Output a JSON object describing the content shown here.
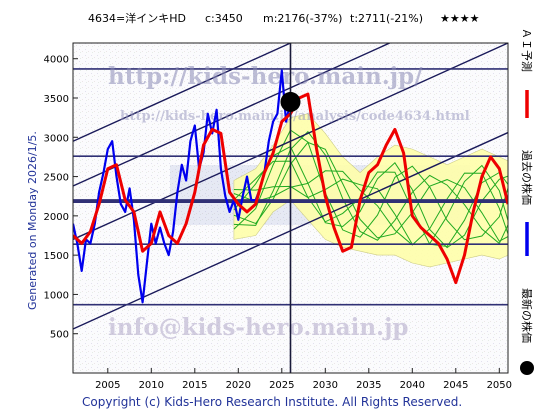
{
  "header": {
    "code_name": "4634=洋インキHD",
    "current": "c:3450",
    "median": "m:2176(-37%)",
    "target": "t:2711(-21%)",
    "stars": "★★★★"
  },
  "side_note": "Generated on Monday 2026/1/5.",
  "copyright": "Copyright (c) Kids-Hero Research Institute. All Rights Reserved.",
  "watermarks": {
    "url_top": "http://kids-hero.main.jp/",
    "url_sub": "http://kids-hero.main.jp/analysis/code4634.html",
    "email": "info@kids-hero.main.jp"
  },
  "legend": {
    "forecast": "ＡＩ予測",
    "past_price": "過去の株価",
    "latest_price": "最新の株価"
  },
  "colors": {
    "forecast": "#ee0000",
    "past": "#0000ee",
    "sim": "#22aa22",
    "band": "#ffffaa",
    "band_green": "#99ee77",
    "trend": "#1a1a5a",
    "hline": "#303075"
  },
  "chart_data": {
    "type": "line",
    "xlim": [
      2001,
      2051
    ],
    "ylim": [
      0,
      4200
    ],
    "x_ticks": [
      2005,
      2010,
      2015,
      2020,
      2025,
      2030,
      2035,
      2040,
      2045,
      2050
    ],
    "y_ticks": [
      500,
      1000,
      1500,
      2000,
      2500,
      3000,
      3500,
      4000
    ],
    "latest_point": {
      "x": 2026.0,
      "y": 3450
    },
    "marker_year": 2026.0,
    "horizontal_levels": [
      3870,
      2760,
      2200,
      2176,
      1640,
      870
    ],
    "trend_lines": [
      {
        "from": [
          2001,
          2950
        ],
        "to": [
          2051,
          5450
        ]
      },
      {
        "from": [
          2001,
          2380
        ],
        "to": [
          2051,
          4880
        ]
      },
      {
        "from": [
          2001,
          1700
        ],
        "to": [
          2051,
          4200
        ]
      },
      {
        "from": [
          2001,
          560
        ],
        "to": [
          2051,
          3060
        ]
      }
    ],
    "past_price": {
      "name": "過去の株価",
      "x": [
        2001.0,
        2001.5,
        2002.0,
        2002.5,
        2003.0,
        2003.5,
        2004.0,
        2004.5,
        2005.0,
        2005.5,
        2006.0,
        2006.5,
        2007.0,
        2007.5,
        2008.0,
        2008.5,
        2009.0,
        2009.5,
        2010.0,
        2010.5,
        2011.0,
        2011.5,
        2012.0,
        2012.5,
        2013.0,
        2013.5,
        2014.0,
        2014.5,
        2015.0,
        2015.5,
        2016.0,
        2016.5,
        2017.0,
        2017.5,
        2018.0,
        2018.5,
        2019.0,
        2019.5,
        2020.0,
        2020.5,
        2021.0,
        2021.5,
        2022.0,
        2022.5,
        2023.0,
        2023.5,
        2024.0,
        2024.5,
        2025.0,
        2025.5,
        2026.0
      ],
      "y": [
        1900,
        1650,
        1300,
        1700,
        1650,
        1900,
        2300,
        2550,
        2850,
        2950,
        2500,
        2150,
        2050,
        2350,
        1950,
        1250,
        900,
        1400,
        1900,
        1650,
        1850,
        1650,
        1500,
        1800,
        2300,
        2650,
        2450,
        2950,
        3150,
        2600,
        2800,
        3300,
        3050,
        3350,
        2600,
        2250,
        2050,
        2200,
        1950,
        2250,
        2500,
        2200,
        2200,
        2350,
        2550,
        2950,
        3200,
        3300,
        3850,
        3200,
        3450
      ]
    },
    "forecast": {
      "name": "ＡＩ予測",
      "x": [
        2001.0,
        2002.0,
        2003.0,
        2004.0,
        2005.0,
        2006.0,
        2007.0,
        2008.0,
        2009.0,
        2010.0,
        2011.0,
        2012.0,
        2013.0,
        2014.0,
        2015.0,
        2016.0,
        2017.0,
        2018.0,
        2019.0,
        2020.0,
        2021.0,
        2022.0,
        2023.0,
        2024.0,
        2025.0,
        2026.0,
        2027.0,
        2028.0,
        2029.0,
        2030.0,
        2031.0,
        2032.0,
        2033.0,
        2034.0,
        2035.0,
        2036.0,
        2037.0,
        2038.0,
        2039.0,
        2040.0,
        2041.0,
        2042.0,
        2043.0,
        2044.0,
        2045.0,
        2046.0,
        2047.0,
        2048.0,
        2049.0,
        2050.0,
        2051.0
      ],
      "y": [
        1750,
        1650,
        1800,
        2150,
        2600,
        2650,
        2200,
        2050,
        1550,
        1650,
        2050,
        1750,
        1650,
        1900,
        2300,
        2900,
        3100,
        3050,
        2300,
        2150,
        2050,
        2150,
        2550,
        2800,
        3200,
        3300,
        3500,
        3550,
        2850,
        2250,
        1850,
        1550,
        1600,
        2200,
        2550,
        2650,
        2900,
        3100,
        2800,
        2000,
        1850,
        1750,
        1650,
        1450,
        1150,
        1500,
        2050,
        2500,
        2750,
        2600,
        2150
      ]
    },
    "band": {
      "x": [
        2019.5,
        2022,
        2024,
        2026,
        2028,
        2030,
        2032,
        2034,
        2036,
        2038,
        2040,
        2042,
        2044,
        2046,
        2048,
        2050,
        2051
      ],
      "upper": [
        2450,
        2600,
        2900,
        3250,
        3300,
        3050,
        2750,
        2550,
        2750,
        2900,
        2850,
        2750,
        2650,
        2750,
        2850,
        2750,
        2700
      ],
      "lower": [
        1700,
        1750,
        2050,
        2200,
        1950,
        1700,
        1600,
        1550,
        1500,
        1500,
        1400,
        1350,
        1400,
        1450,
        1500,
        1450,
        1500
      ]
    }
  }
}
